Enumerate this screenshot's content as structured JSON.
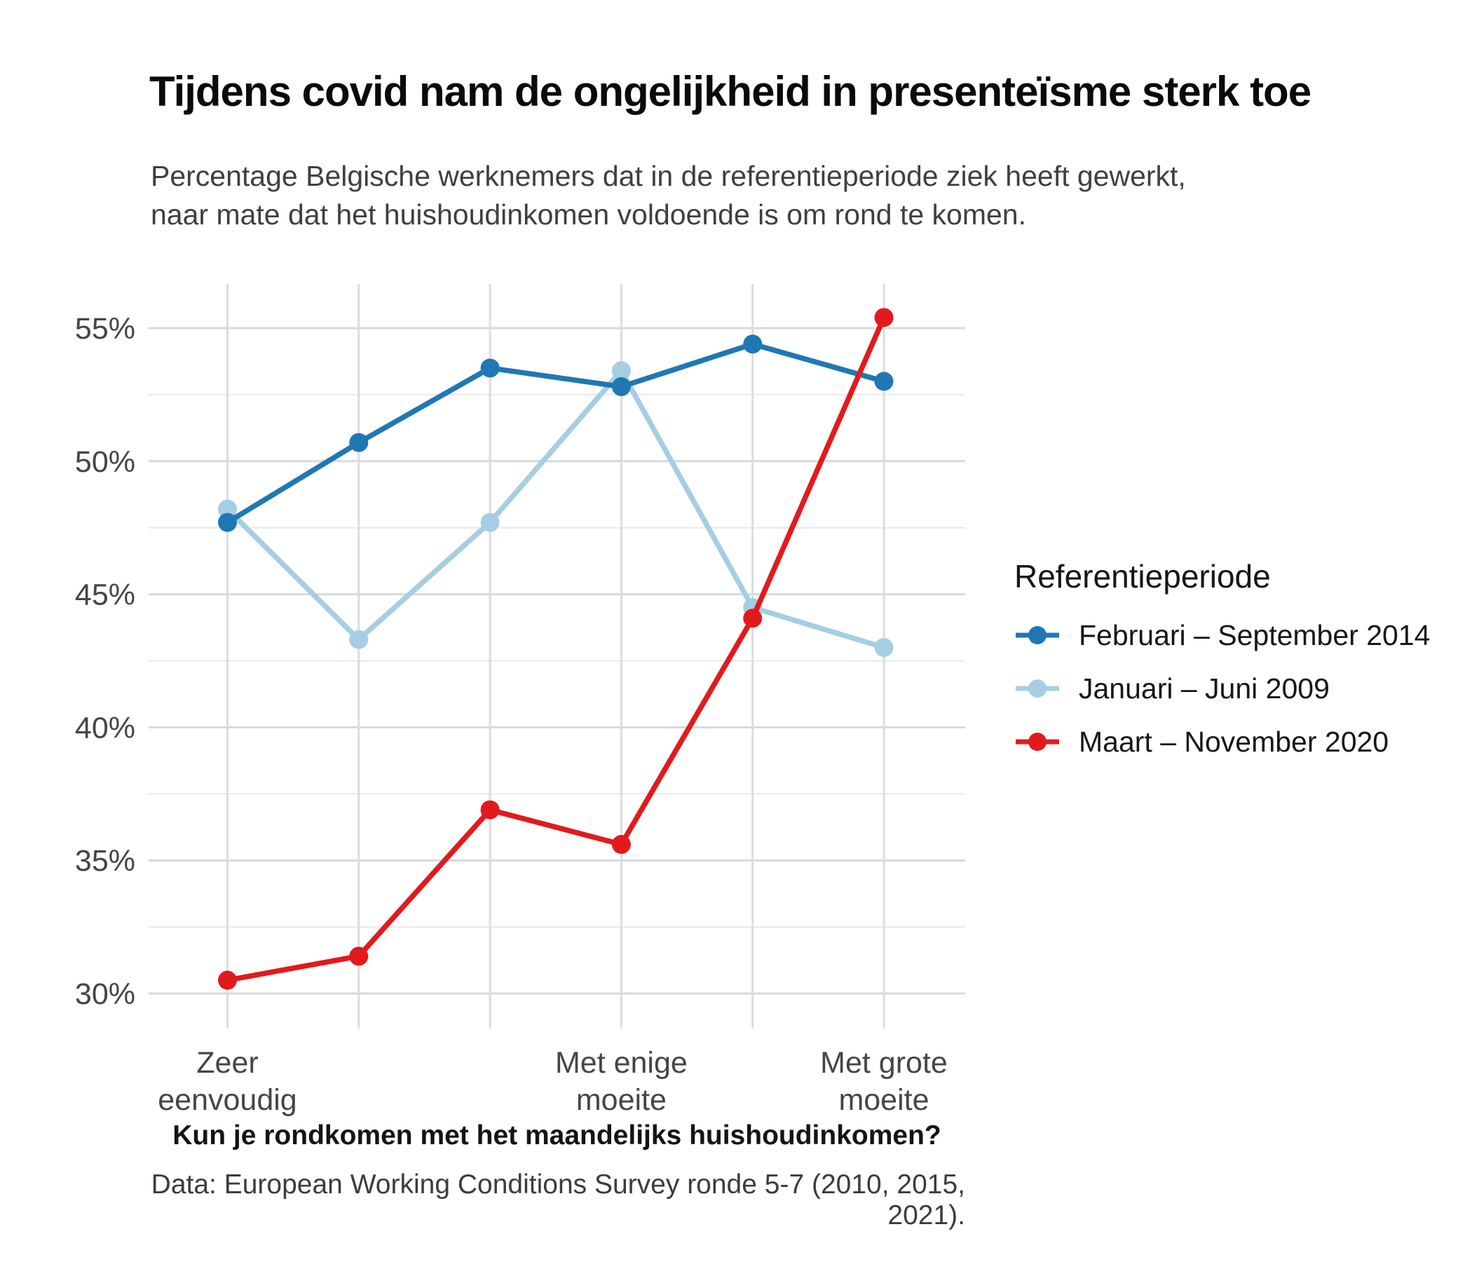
{
  "header": {
    "title": "Tijdens covid nam de ongelijkheid in presenteïsme sterk toe",
    "subtitle_lines": [
      "Percentage Belgische werknemers dat in de referentieperiode ziek heeft gewerkt,",
      "naar mate dat het huishoudinkomen voldoende is om rond te komen."
    ]
  },
  "chart_data": {
    "type": "line",
    "title": "Tijdens covid nam de ongelijkheid in presenteïsme sterk toe",
    "subtitle": "Percentage Belgische werknemers dat in de referentieperiode ziek heeft gewerkt, naar mate dat het huishoudinkomen voldoende is om rond te komen.",
    "xlabel": "Kun je rondkomen met het maandelijks huishoudinkomen?",
    "ylabel": "",
    "caption": "Data: European Working Conditions Survey ronde 5-7 (2010, 2015, 2021).",
    "legend_title": "Referentieperiode",
    "legend_position": "right",
    "grid": true,
    "categories_count": 6,
    "x_tick_labels": [
      {
        "index": 0,
        "lines": [
          "Zeer",
          "eenvoudig"
        ]
      },
      {
        "index": 3,
        "lines": [
          "Met enige",
          "moeite"
        ]
      },
      {
        "index": 5,
        "lines": [
          "Met grote",
          "moeite"
        ]
      }
    ],
    "y_ticks": [
      30,
      35,
      40,
      45,
      50,
      55
    ],
    "y_tick_labels": [
      "30%",
      "35%",
      "40%",
      "45%",
      "50%",
      "55%"
    ],
    "y_minor_ticks": [
      32.5,
      37.5,
      42.5,
      47.5,
      52.5
    ],
    "ylim": [
      28.7,
      56.7
    ],
    "series": [
      {
        "name": "Februari – September 2014",
        "color": "#1F78B4",
        "values": [
          47.7,
          50.7,
          53.5,
          52.8,
          54.4,
          53.0
        ]
      },
      {
        "name": "Januari – Juni 2009",
        "color": "#A6CEE3",
        "values": [
          48.2,
          43.3,
          47.7,
          53.4,
          44.5,
          43.0
        ]
      },
      {
        "name": "Maart – November 2020",
        "color": "#E31A1C",
        "values": [
          30.5,
          31.4,
          36.9,
          35.6,
          44.1,
          55.4
        ]
      }
    ],
    "draw_order": [
      1,
      0,
      2
    ]
  },
  "colors": {
    "grid_major": "#d9d9d9",
    "grid_minor": "#e9e9e9",
    "grid_vertical": "#dcdcdc",
    "tick_text": "#454545"
  }
}
